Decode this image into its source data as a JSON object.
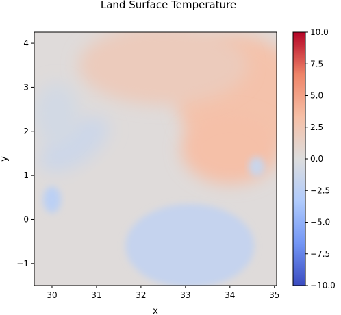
{
  "chart_data": {
    "type": "heatmap",
    "title": "Land Surface Temperature",
    "xlabel": "x",
    "ylabel": "y",
    "xlim": [
      29.6,
      35.05
    ],
    "ylim": [
      -1.5,
      4.25
    ],
    "xticks": [
      30,
      31,
      32,
      33,
      34,
      35
    ],
    "yticks": [
      -1,
      0,
      1,
      2,
      3,
      4
    ],
    "xtick_labels": [
      "30",
      "31",
      "32",
      "33",
      "34",
      "35"
    ],
    "ytick_labels": [
      "−1",
      "0",
      "1",
      "2",
      "3",
      "4"
    ],
    "colormap": "coolwarm",
    "colorbar": {
      "vmin": -10.0,
      "vmax": 10.0,
      "ticks": [
        10.0,
        7.5,
        5.0,
        2.5,
        0.0,
        -2.5,
        -5.0,
        -7.5,
        -10.0
      ],
      "tick_labels": [
        "10.0",
        "7.5",
        "5.0",
        "2.5",
        "0.0",
        "−2.5",
        "−5.0",
        "−7.5",
        "−10.0"
      ],
      "colors": [
        "#3b4cc0",
        "#7396f5",
        "#b0cbfc",
        "#dddddd",
        "#f6bfa6",
        "#ee8468",
        "#b40426"
      ]
    },
    "field_regions": [
      {
        "feature": "background",
        "value": 0.2
      },
      {
        "feature": "warm-northeast",
        "value": 3.0
      },
      {
        "feature": "warm-north",
        "value": 2.0
      },
      {
        "feature": "warm-east",
        "value": 3.2
      },
      {
        "feature": "cool-southern-lake",
        "value": -1.8
      },
      {
        "feature": "cool-western-band",
        "value": -1.2
      },
      {
        "feature": "cool-west-patch",
        "value": -2.5
      },
      {
        "feature": "cool-east-patch",
        "value": -1.5
      },
      {
        "feature": "cool-northwest",
        "value": -0.8
      }
    ]
  }
}
